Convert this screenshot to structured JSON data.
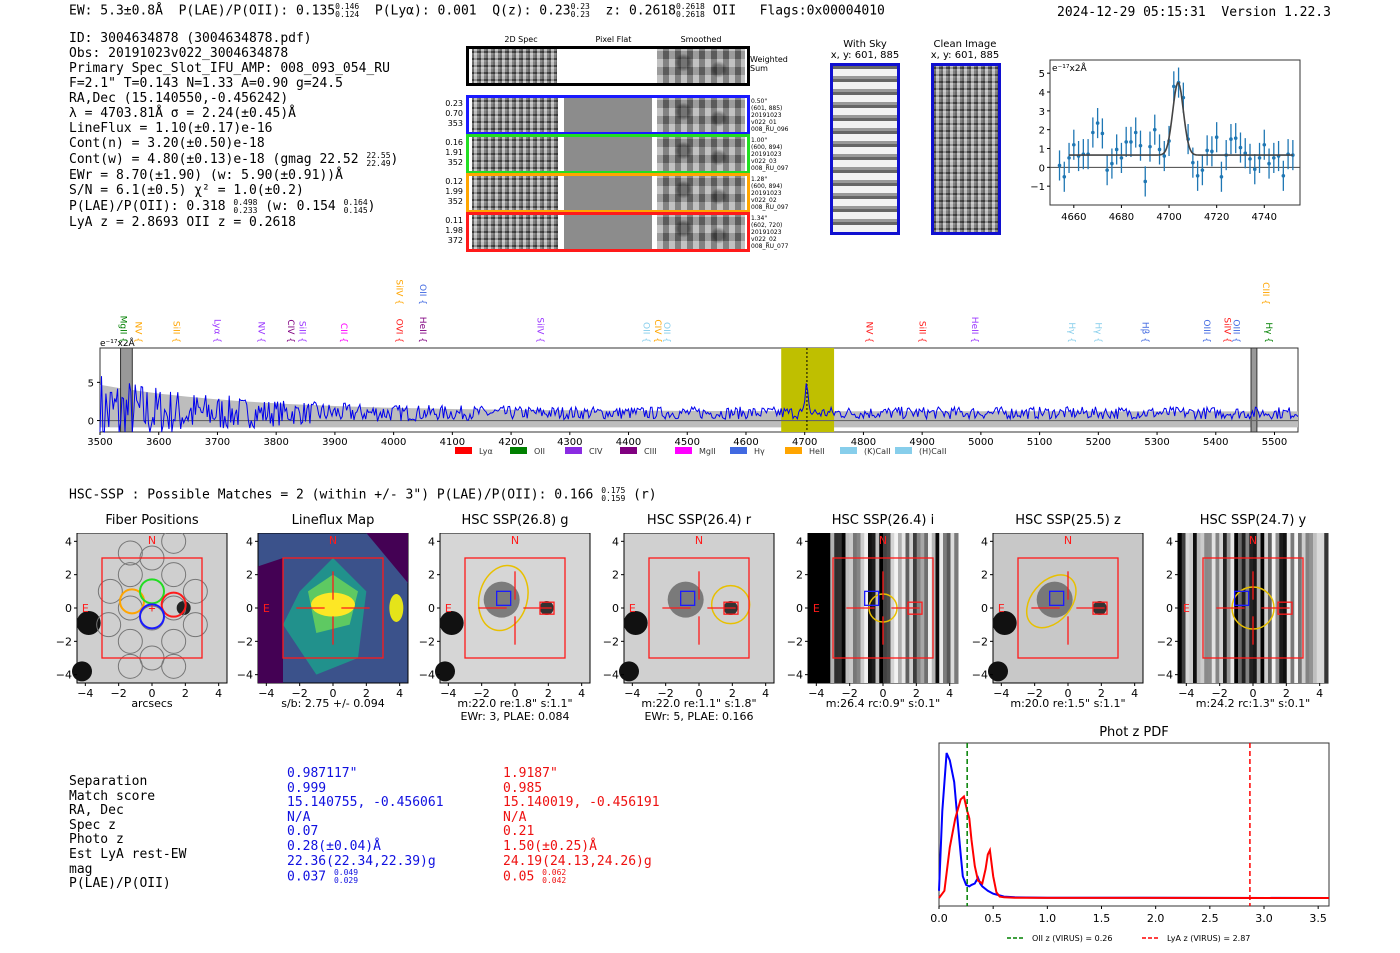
{
  "header": {
    "ew": "EW: 5.3±0.8Å",
    "plae_label": "P(LAE)/P(OII):",
    "plae_value": "0.135",
    "plae_hi": "0.146",
    "plae_lo": "0.124",
    "plya_label": "P(Lyα):",
    "plya_value": "0.001",
    "qz_label": "Q(z):",
    "qz_value": "0.23",
    "qz_hi": "0.23",
    "qz_lo": "0.23",
    "z_label": "z:",
    "z_value": "0.2618",
    "z_hi": "0.2618",
    "z_lo": "0.2618",
    "z_line": "OII",
    "flags": "Flags:0x00004010",
    "timestamp": "2024-12-29 05:15:31",
    "version": "Version 1.22.3"
  },
  "info": {
    "id": "ID: 3004634878 (3004634878.pdf)",
    "obs": "Obs: 20191023v022_3004634878",
    "primary": "Primary Spec_Slot_IFU_AMP: 008_093_054_RU",
    "params": "F=2.1\"  T=0.143  N=1.33  A=0.90  g=24.5",
    "radec": "RA,Dec (15.140550,-0.456242)",
    "lambda": "λ = 4703.81Å   σ = 2.24(±0.45)Å",
    "lineflux": "LineFlux = 1.10(±0.17)e-16",
    "contn": "Cont(n) = 3.20(±0.50)e-18",
    "contw_pre": "Cont(w) = 4.80(±0.13)e-18 (gmag 22.52",
    "contw_hi": "22.55",
    "contw_lo": "22.49",
    "contw_post": ")",
    "ewr": "EWr = 8.70(±1.90) (w: 5.90(±0.91))Å",
    "sn": "S/N = 6.1(±0.5)   χ² = 1.0(±0.2)",
    "plae_pre": "P(LAE)/P(OII): 0.318",
    "plae_hi": "0.498",
    "plae_lo": "0.233",
    "plae_mid": "(w: 0.154",
    "plae_w_hi": "0.164",
    "plae_w_lo": "0.145",
    "plae_post": ")",
    "redshifts": "LyA z = 2.8693   OII z = 0.2618"
  },
  "cutouts": {
    "col_titles": [
      "2D Spec",
      "Pixel Flat",
      "Smoothed"
    ],
    "weighted_label": "Weighted Sum",
    "rows": [
      {
        "color": "#1a1aff",
        "left": [
          "0.23",
          "0.70",
          "353"
        ],
        "right": [
          "0.50\"",
          "(601, 885)",
          "20191023",
          "v022_01",
          "008_RU_096"
        ]
      },
      {
        "color": "#22dd22",
        "left": [
          "0.16",
          "1.91",
          "352"
        ],
        "right": [
          "1.00\"",
          "(600, 894)",
          "20191023",
          "v022_03",
          "008_RU_097"
        ]
      },
      {
        "color": "#ffa500",
        "left": [
          "0.12",
          "1.99",
          "352"
        ],
        "right": [
          "1.28\"",
          "(600, 894)",
          "20191023",
          "v022_02",
          "008_RU_097"
        ]
      },
      {
        "color": "#ff1a1a",
        "left": [
          "0.11",
          "1.98",
          "372"
        ],
        "right": [
          "1.34\"",
          "(602, 720)",
          "20191023",
          "v022_02",
          "008_RU_077"
        ]
      }
    ]
  },
  "images": {
    "with_sky_title": "With Sky",
    "with_sky_coords": "x, y: 601, 885",
    "clean_title": "Clean Image",
    "clean_coords": "x, y: 601, 885"
  },
  "chart_data": [
    {
      "type": "scatter",
      "title": "",
      "ylabel": "e⁻¹⁷x2Å",
      "xlim": [
        4650,
        4755
      ],
      "ylim": [
        -2,
        5.7
      ],
      "xticks": [
        4660,
        4680,
        4700,
        4720,
        4740
      ],
      "yticks": [
        -1,
        0,
        1,
        2,
        3,
        4,
        5
      ],
      "x": [
        4654,
        4656,
        4658,
        4660,
        4662,
        4664,
        4666,
        4668,
        4670,
        4672,
        4674,
        4676,
        4678,
        4680,
        4682,
        4684,
        4686,
        4688,
        4690,
        4692,
        4694,
        4696,
        4698,
        4700,
        4702,
        4704,
        4706,
        4708,
        4710,
        4712,
        4714,
        4716,
        4718,
        4720,
        4722,
        4724,
        4726,
        4728,
        4730,
        4732,
        4734,
        4736,
        4738,
        4740,
        4742,
        4744,
        4746,
        4748,
        4750,
        4752
      ],
      "y": [
        0.1,
        -0.5,
        0.5,
        1.2,
        0.6,
        0.7,
        0.7,
        1.85,
        2.35,
        1.8,
        -0.15,
        0.2,
        0.95,
        0.5,
        1.35,
        1.35,
        1.85,
        1.15,
        -0.75,
        1.1,
        2.0,
        0.95,
        0.6,
        1.4,
        4.3,
        4.5,
        3.7,
        1.5,
        0.25,
        -0.45,
        -0.15,
        0.9,
        0.85,
        1.6,
        -0.5,
        0.65,
        1.5,
        1.55,
        1.05,
        0.75,
        0.45,
        -0.1,
        0.5,
        1.2,
        0.2,
        0.5,
        0.6,
        -0.45,
        0.7,
        0.65
      ],
      "yerr": 0.8,
      "fit": {
        "continuum": 0.65,
        "amplitude": 3.85,
        "center": 4703.8,
        "sigma": 2.24
      }
    },
    {
      "type": "line",
      "title": "",
      "ylabel": "e⁻¹⁷x2Å",
      "xlim": [
        3500,
        5540
      ],
      "ylim": [
        -1.5,
        9.5
      ],
      "xticks": [
        3500,
        3600,
        3700,
        3800,
        3900,
        4000,
        4100,
        4200,
        4300,
        4400,
        4500,
        4600,
        4700,
        4800,
        4900,
        5000,
        5100,
        5200,
        5300,
        5400,
        5500
      ],
      "yticks": [
        0,
        5
      ],
      "highlight_band": [
        4660,
        4750
      ],
      "line_center": 4703.8,
      "masked_bands": [
        [
          3535,
          3555
        ],
        [
          5460,
          5470
        ]
      ],
      "line_labels": [
        {
          "name": "MgII",
          "wave": 3530,
          "color": "#008000",
          "row": 0
        },
        {
          "name": "NV",
          "wave": 3555,
          "color": "#ffa500",
          "row": 0
        },
        {
          "name": "SiII",
          "wave": 3620,
          "color": "#ffa500",
          "row": 0
        },
        {
          "name": "Lyα",
          "wave": 3690,
          "color": "#9933ff",
          "row": 0
        },
        {
          "name": "NV",
          "wave": 3765,
          "color": "#9933ff",
          "row": 0
        },
        {
          "name": "CIV",
          "wave": 3815,
          "color": "#800080",
          "row": 0
        },
        {
          "name": "SiII",
          "wave": 3835,
          "color": "#9933ff",
          "row": 0
        },
        {
          "name": "CII",
          "wave": 3905,
          "color": "#ff00ff",
          "row": 0
        },
        {
          "name": "OVI",
          "wave": 4000,
          "color": "#ff1a1a",
          "row": 0
        },
        {
          "name": "SiIV",
          "wave": 4000,
          "color": "#ffa500",
          "row": 1
        },
        {
          "name": "OII",
          "wave": 4040,
          "color": "#4169e1",
          "row": 1
        },
        {
          "name": "HeII",
          "wave": 4040,
          "color": "#800080",
          "row": 0
        },
        {
          "name": "SiIV",
          "wave": 4240,
          "color": "#9933ff",
          "row": 0
        },
        {
          "name": "OII",
          "wave": 4420,
          "color": "#87ceeb",
          "row": 0
        },
        {
          "name": "CIV",
          "wave": 4440,
          "color": "#ffa500",
          "row": 0
        },
        {
          "name": "OII",
          "wave": 4455,
          "color": "#87ceeb",
          "row": 0
        },
        {
          "name": "NV",
          "wave": 4800,
          "color": "#ff1a1a",
          "row": 0
        },
        {
          "name": "SiII",
          "wave": 4890,
          "color": "#ff1a1a",
          "row": 0
        },
        {
          "name": "HeII",
          "wave": 4980,
          "color": "#9933ff",
          "row": 0
        },
        {
          "name": "Hγ",
          "wave": 5145,
          "color": "#87ceeb",
          "row": 0
        },
        {
          "name": "Hγ",
          "wave": 5190,
          "color": "#87ceeb",
          "row": 0
        },
        {
          "name": "Hβ",
          "wave": 5270,
          "color": "#4169e1",
          "row": 0
        },
        {
          "name": "OIII",
          "wave": 5375,
          "color": "#4169e1",
          "row": 0
        },
        {
          "name": "SiIV",
          "wave": 5410,
          "color": "#ff1a1a",
          "row": 0
        },
        {
          "name": "OIII",
          "wave": 5425,
          "color": "#4169e1",
          "row": 0
        },
        {
          "name": "CIII",
          "wave": 5475,
          "color": "#ffa500",
          "row": 1
        },
        {
          "name": "Hγ",
          "wave": 5480,
          "color": "#008000",
          "row": 0
        }
      ],
      "legend": [
        {
          "label": "Lyα",
          "color": "#ff0000"
        },
        {
          "label": "OII",
          "color": "#008000"
        },
        {
          "label": "CIV",
          "color": "#8a2be2"
        },
        {
          "label": "CIII",
          "color": "#800080"
        },
        {
          "label": "MgII",
          "color": "#ff00ff"
        },
        {
          "label": "Hγ",
          "color": "#4169e1"
        },
        {
          "label": "HeII",
          "color": "#ffa500"
        },
        {
          "label": "(K)CaII",
          "color": "#87ceeb"
        },
        {
          "label": "(H)CaII",
          "color": "#87ceeb"
        }
      ]
    },
    {
      "type": "line",
      "title": "Phot z PDF",
      "xlim": [
        0,
        3.6
      ],
      "xticks": [
        0.0,
        0.5,
        1.0,
        1.5,
        2.0,
        2.5,
        3.0,
        3.5
      ],
      "series": [
        {
          "name": "blue-candidate",
          "color": "#0000ff",
          "x": [
            0,
            0.03,
            0.07,
            0.1,
            0.14,
            0.17,
            0.2,
            0.22,
            0.25,
            0.28,
            0.3,
            0.33,
            0.36,
            0.38,
            0.4,
            0.45,
            0.5,
            0.55,
            0.6,
            0.7,
            1.0,
            3.6
          ],
          "y": [
            0.05,
            0.6,
            1.0,
            0.95,
            0.8,
            0.55,
            0.3,
            0.15,
            0.09,
            0.08,
            0.09,
            0.1,
            0.14,
            0.1,
            0.08,
            0.05,
            0.03,
            0.02,
            0.01,
            0.005,
            0.002,
            0.0
          ]
        },
        {
          "name": "red-candidate",
          "color": "#ff0000",
          "x": [
            0,
            0.05,
            0.1,
            0.15,
            0.2,
            0.23,
            0.26,
            0.28,
            0.3,
            0.33,
            0.36,
            0.4,
            0.43,
            0.45,
            0.47,
            0.5,
            0.53,
            0.56,
            0.6,
            0.7,
            1.0,
            3.6
          ],
          "y": [
            0.0,
            0.05,
            0.35,
            0.55,
            0.68,
            0.7,
            0.6,
            0.55,
            0.4,
            0.22,
            0.12,
            0.1,
            0.2,
            0.3,
            0.33,
            0.15,
            0.04,
            0.01,
            0.005,
            0.002,
            0.001,
            0.0
          ]
        }
      ],
      "vlines": [
        {
          "label": "OII z (VIRUS) = 0.26",
          "x": 0.26,
          "color": "#008000"
        },
        {
          "label": "LyA z (VIRUS) = 2.87",
          "x": 2.87,
          "color": "#ff0000"
        }
      ]
    }
  ],
  "hsc": {
    "summary_pre": "HSC-SSP : Possible Matches = 2 (within +/- 3\")  P(LAE)/P(OII): 0.166",
    "summary_hi": "0.175",
    "summary_lo": "0.159",
    "summary_post": "(r)",
    "panels": [
      {
        "title": "Fiber Positions",
        "sub1": "arcsecs",
        "sub2": "",
        "kind": "fiber"
      },
      {
        "title": "Lineflux Map",
        "sub1": "s/b: 2.75 +/- 0.094",
        "sub2": "",
        "kind": "lineflux"
      },
      {
        "title": "HSC SSP(26.8) g",
        "sub1": "m:22.0  re:1.8\"  s:1.1\"",
        "sub2": "EWr: 3, PLAE: 0.084",
        "kind": "g"
      },
      {
        "title": "HSC SSP(26.4) r",
        "sub1": "m:22.0  re:1.1\"  s:1.8\"",
        "sub2": "EWr: 5, PLAE: 0.166",
        "kind": "r"
      },
      {
        "title": "HSC SSP(26.4) i",
        "sub1": "m:26.4 rc:0.9\"  s:0.1\"",
        "sub2": "",
        "kind": "i"
      },
      {
        "title": "HSC SSP(25.5) z",
        "sub1": "m:20.0  re:1.5\"  s:1.1\"",
        "sub2": "",
        "kind": "z"
      },
      {
        "title": "HSC SSP(24.7) y",
        "sub1": "m:24.2 rc:1.3\"  s:0.1\"",
        "sub2": "",
        "kind": "y"
      }
    ],
    "ticks": [
      "−4",
      "−2",
      "0",
      "2",
      "4"
    ],
    "north": "N",
    "east": "E"
  },
  "match_table": {
    "labels": [
      "Separation",
      "Match score",
      "RA, Dec",
      "Spec z",
      "Photo z",
      "Est LyA rest-EW",
      "mag",
      "P(LAE)/P(OII)"
    ],
    "blue": [
      "0.987117\"",
      "0.999",
      "15.140755, -0.456061",
      "N/A",
      "0.07",
      "0.28(±0.04)Å",
      "22.36(22.34,22.39)g"
    ],
    "blue_plae": "0.037",
    "blue_plae_hi": "0.049",
    "blue_plae_lo": "0.029",
    "red": [
      "1.9187\"",
      "0.985",
      "15.140019, -0.456191",
      "N/A",
      "0.21",
      "1.50(±0.25)Å",
      "24.19(24.13,24.26)g"
    ],
    "red_plae": "0.05",
    "red_plae_hi": "0.062",
    "red_plae_lo": "0.042"
  }
}
